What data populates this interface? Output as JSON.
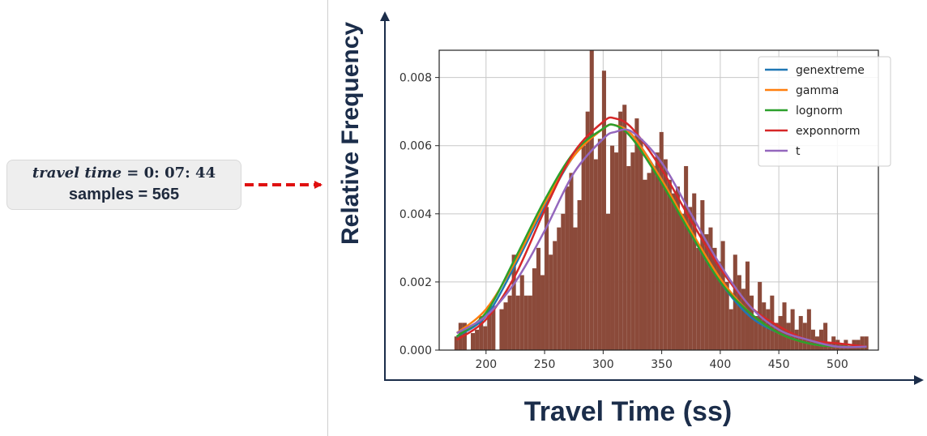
{
  "annotation": {
    "travel_time_label": "travel time",
    "equals": " = ",
    "travel_time_value": "0: 07: 44",
    "samples_text": "samples = 565"
  },
  "colors": {
    "arrow": "#e01010",
    "bars": "#8b4a3a"
  },
  "chart_data": {
    "type": "bar",
    "xlabel": "Travel Time (ss)",
    "ylabel": "Relative Frequency",
    "xlim": [
      160,
      535
    ],
    "ylim": [
      0,
      0.0088
    ],
    "xticks": [
      200,
      250,
      300,
      350,
      400,
      450,
      500
    ],
    "yticks": [
      0.0,
      0.002,
      0.004,
      0.006,
      0.008
    ],
    "ytick_labels": [
      "0.000",
      "0.002",
      "0.004",
      "0.006",
      "0.008"
    ],
    "grid": true,
    "legend_position": "top-right",
    "histogram": {
      "bin_start": 173,
      "bin_width": 3.5,
      "values": [
        0.0004,
        0.0008,
        0.0008,
        0.0,
        0.0005,
        0.0006,
        0.001,
        0.0007,
        0.0013,
        0.0013,
        0.0,
        0.0012,
        0.0014,
        0.0016,
        0.0028,
        0.0016,
        0.0022,
        0.0016,
        0.0016,
        0.0024,
        0.003,
        0.0022,
        0.0042,
        0.0028,
        0.0032,
        0.0036,
        0.004,
        0.0048,
        0.0052,
        0.0036,
        0.0044,
        0.006,
        0.007,
        0.0088,
        0.0056,
        0.0062,
        0.0082,
        0.004,
        0.006,
        0.0058,
        0.007,
        0.0072,
        0.0054,
        0.0058,
        0.0068,
        0.0062,
        0.005,
        0.0052,
        0.0054,
        0.0058,
        0.0064,
        0.0056,
        0.005,
        0.0046,
        0.0048,
        0.004,
        0.0054,
        0.0042,
        0.0046,
        0.003,
        0.0044,
        0.0034,
        0.0036,
        0.003,
        0.0026,
        0.0032,
        0.002,
        0.0012,
        0.0028,
        0.0022,
        0.0018,
        0.0026,
        0.0016,
        0.001,
        0.002,
        0.0014,
        0.0012,
        0.0016,
        0.0008,
        0.001,
        0.0014,
        0.0008,
        0.0012,
        0.0006,
        0.001,
        0.0008,
        0.0012,
        0.0006,
        0.0004,
        0.0006,
        0.0008,
        0.0002,
        0.0004,
        0.0003,
        0.0002,
        0.0003,
        0.0001,
        0.0003,
        0.0003,
        0.0004,
        0.0004
      ]
    },
    "series": [
      {
        "name": "genextreme",
        "color": "#1f77b4",
        "x": [
          175,
          200,
          225,
          250,
          275,
          300,
          310,
          325,
          350,
          375,
          400,
          425,
          450,
          475,
          500,
          525
        ],
        "values": [
          0.0004,
          0.001,
          0.0025,
          0.0042,
          0.0057,
          0.0065,
          0.0066,
          0.0063,
          0.005,
          0.0034,
          0.002,
          0.001,
          0.0005,
          0.0002,
          0.0001,
          0.0001
        ]
      },
      {
        "name": "gamma",
        "color": "#ff7f0e",
        "x": [
          175,
          200,
          225,
          250,
          275,
          300,
          310,
          325,
          350,
          375,
          400,
          425,
          450,
          475,
          500,
          525
        ],
        "values": [
          0.0005,
          0.0012,
          0.0026,
          0.0043,
          0.0057,
          0.0065,
          0.0066,
          0.0063,
          0.005,
          0.0035,
          0.0021,
          0.0011,
          0.0005,
          0.0002,
          0.0001,
          0.0001
        ]
      },
      {
        "name": "lognorm",
        "color": "#2ca02c",
        "x": [
          175,
          200,
          225,
          250,
          275,
          300,
          310,
          325,
          350,
          375,
          400,
          425,
          450,
          475,
          500,
          525
        ],
        "values": [
          0.0004,
          0.0011,
          0.0027,
          0.0044,
          0.0058,
          0.0065,
          0.0066,
          0.0062,
          0.0049,
          0.0034,
          0.002,
          0.0011,
          0.0005,
          0.0002,
          0.0001,
          0.0001
        ]
      },
      {
        "name": "exponnorm",
        "color": "#d62728",
        "x": [
          175,
          200,
          225,
          250,
          275,
          300,
          310,
          325,
          350,
          375,
          400,
          425,
          450,
          475,
          500,
          525
        ],
        "values": [
          0.0003,
          0.0009,
          0.0022,
          0.0041,
          0.0058,
          0.0067,
          0.0068,
          0.0065,
          0.0053,
          0.0038,
          0.0024,
          0.0013,
          0.0007,
          0.0003,
          0.0002,
          0.0001
        ]
      },
      {
        "name": "t",
        "color": "#9467bd",
        "x": [
          175,
          200,
          225,
          250,
          275,
          300,
          310,
          325,
          350,
          375,
          400,
          425,
          450,
          475,
          500,
          525
        ],
        "values": [
          0.0005,
          0.001,
          0.002,
          0.0035,
          0.0052,
          0.0062,
          0.0064,
          0.0064,
          0.0055,
          0.004,
          0.0025,
          0.0013,
          0.0006,
          0.0003,
          0.0001,
          0.0001
        ]
      }
    ]
  }
}
